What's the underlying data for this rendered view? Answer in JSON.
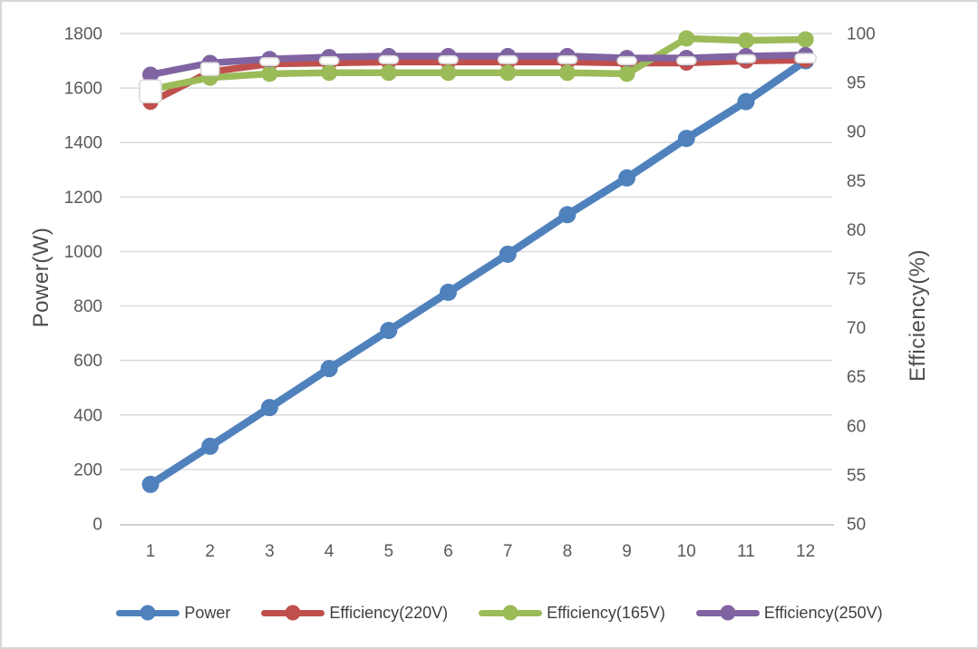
{
  "colors": {
    "background": "#FFFFFF",
    "frame_border": "#D8D8D8",
    "gridline": "#D9D9D9",
    "axis_line": "#BFBFBF",
    "tick_text": "#595959",
    "axis_title_text": "#4D4D4D",
    "legend_text": "#404040",
    "marker_outline": "#D9D9D9"
  },
  "chart_data": {
    "type": "line",
    "title": "",
    "grid": true,
    "legend_position": "bottom",
    "x": [
      1,
      2,
      3,
      4,
      5,
      6,
      7,
      8,
      9,
      10,
      11,
      12
    ],
    "x_axis": {
      "label": "",
      "ticks": [
        "1",
        "2",
        "3",
        "4",
        "5",
        "6",
        "7",
        "8",
        "9",
        "10",
        "11",
        "12"
      ]
    },
    "left_axis": {
      "label": "Power(W)",
      "min": 0,
      "max": 1800,
      "tick_step": 200,
      "ticks": [
        0,
        200,
        400,
        600,
        800,
        1000,
        1200,
        1400,
        1600,
        1800
      ]
    },
    "right_axis": {
      "label": "Efficiency(%)",
      "min": 50,
      "max": 100,
      "tick_step": 5,
      "ticks": [
        50,
        55,
        60,
        65,
        70,
        75,
        80,
        85,
        90,
        95,
        100
      ]
    },
    "series": [
      {
        "name": "Power",
        "axis": "left",
        "color": "#4F81BD",
        "marker": "circle",
        "values": [
          145,
          285,
          427,
          570,
          710,
          850,
          990,
          1135,
          1270,
          1415,
          1550,
          1700
        ]
      },
      {
        "name": "Efficiency(220V)",
        "axis": "right",
        "color": "#C0504D",
        "marker": "white-dash",
        "values": [
          93.0,
          96.1,
          96.9,
          97.0,
          97.1,
          97.1,
          97.1,
          97.1,
          97.0,
          97.0,
          97.2,
          97.3
        ]
      },
      {
        "name": "Efficiency(165V)",
        "axis": "right",
        "color": "#9BBB59",
        "marker": "circle",
        "values": [
          94.3,
          95.5,
          95.9,
          96.0,
          96.0,
          96.0,
          96.0,
          96.0,
          95.9,
          99.5,
          99.3,
          99.4
        ]
      },
      {
        "name": "Efficiency(250V)",
        "axis": "right",
        "color": "#8064A2",
        "marker": "circle",
        "values": [
          95.8,
          97.0,
          97.4,
          97.6,
          97.7,
          97.7,
          97.7,
          97.7,
          97.5,
          97.5,
          97.7,
          97.8
        ]
      }
    ]
  }
}
